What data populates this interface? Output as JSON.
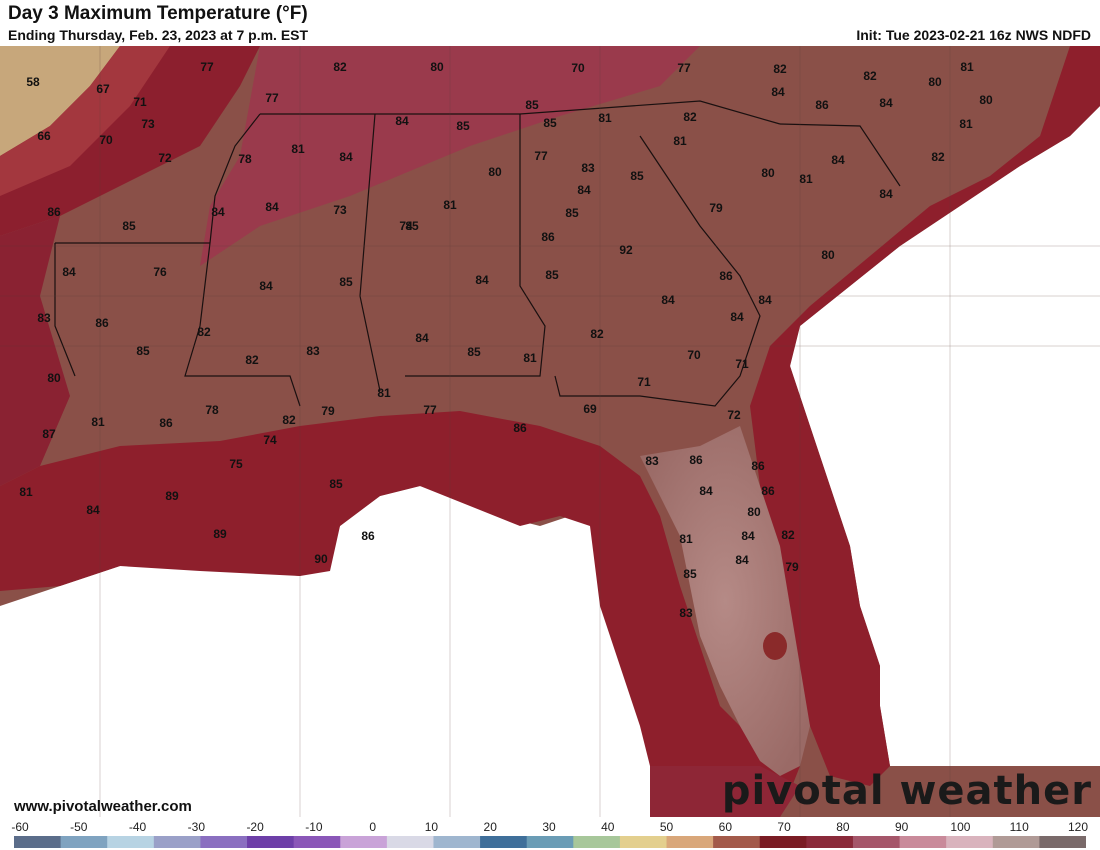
{
  "header": {
    "title": "Day 3 Maximum Temperature (°F)",
    "subtitle": "Ending Thursday, Feb. 23, 2023 at 7 p.m. EST",
    "init": "Init: Tue 2023-02-21 16z NWS NDFD"
  },
  "footer": {
    "website": "www.pivotalweather.com",
    "brand": "pivotal weather"
  },
  "colorbar": {
    "unit": "°F",
    "ticks": [
      "-60",
      "-50",
      "-40",
      "-30",
      "-20",
      "-10",
      "0",
      "10",
      "20",
      "30",
      "40",
      "50",
      "60",
      "70",
      "80",
      "90",
      "100",
      "110",
      "120"
    ],
    "colors": [
      "#5b6d8a",
      "#7fa3c0",
      "#b7d3e3",
      "#9aa0c8",
      "#8a6fc0",
      "#6d3fa8",
      "#8a57b8",
      "#c9a3d8",
      "#d9d9e6",
      "#9fb6cf",
      "#3f6f9a",
      "#6a9cb5",
      "#a7c79a",
      "#e3cf8e",
      "#d9a77a",
      "#a35a4a",
      "#7a1c24",
      "#8a2a3a",
      "#a5566a",
      "#c98a9a",
      "#d9b3bd",
      "#b09a96",
      "#7a6a6a"
    ]
  },
  "map": {
    "temperature_labels": [
      "58",
      "67",
      "71",
      "73",
      "66",
      "70",
      "77",
      "72",
      "77",
      "82",
      "80",
      "78",
      "81",
      "84",
      "85",
      "85",
      "85",
      "70",
      "77",
      "81",
      "82",
      "81",
      "77",
      "82",
      "82",
      "81",
      "80",
      "84",
      "86",
      "84",
      "80",
      "81",
      "84",
      "80",
      "81",
      "82",
      "80",
      "83",
      "85",
      "84",
      "85",
      "86",
      "84",
      "84",
      "73",
      "74",
      "81",
      "92",
      "79",
      "84",
      "86",
      "85",
      "84",
      "84",
      "76",
      "80",
      "84",
      "85",
      "85",
      "84",
      "85",
      "84",
      "86",
      "84",
      "84",
      "82",
      "84",
      "85",
      "81",
      "82",
      "85",
      "86",
      "83",
      "82",
      "83",
      "80",
      "78",
      "81",
      "77",
      "79",
      "82",
      "86",
      "69",
      "71",
      "70",
      "71",
      "72",
      "74",
      "75",
      "81",
      "86",
      "87",
      "81",
      "84",
      "89",
      "89",
      "85",
      "86",
      "90",
      "83",
      "86",
      "84",
      "86",
      "86",
      "80",
      "84",
      "82",
      "81",
      "85",
      "84",
      "79",
      "83"
    ]
  }
}
